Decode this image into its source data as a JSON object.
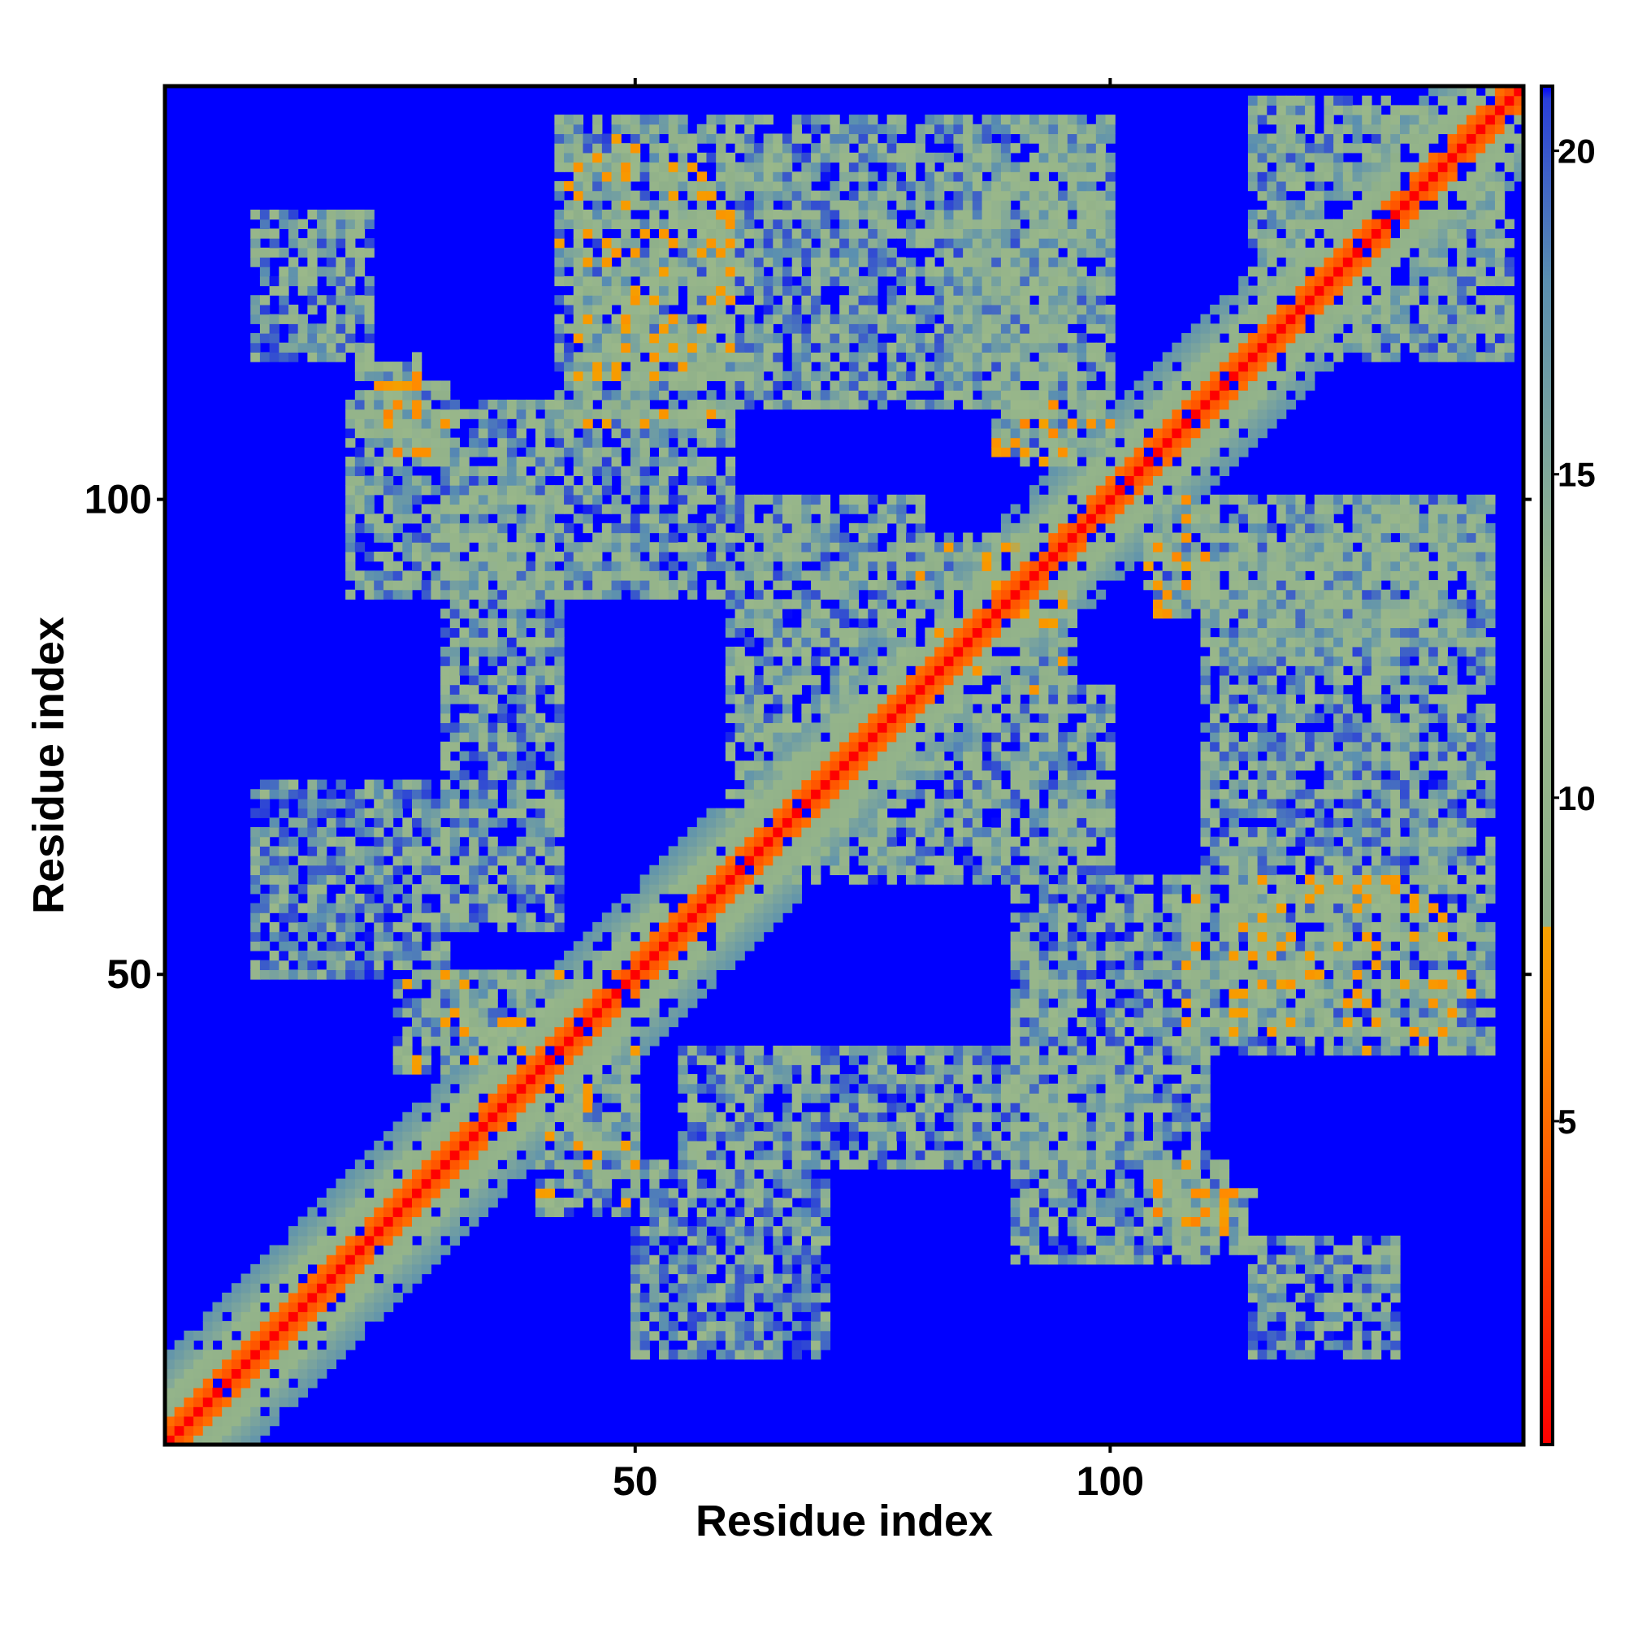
{
  "chart_data": {
    "type": "heatmap",
    "title": "",
    "xlabel": "Residue index",
    "ylabel": "Residue index",
    "x_range": [
      1,
      143
    ],
    "y_range": [
      1,
      143
    ],
    "x_ticks": [
      50,
      100
    ],
    "y_ticks": [
      50,
      100
    ],
    "x_tick_labels": [
      "50",
      "100"
    ],
    "y_tick_labels": [
      "50",
      "100"
    ],
    "colorbar": {
      "ticks": [
        5,
        10,
        15,
        20
      ],
      "tick_labels": [
        "5",
        "10",
        "15",
        "20"
      ],
      "range": [
        0,
        21
      ],
      "stops": [
        {
          "value": 0,
          "color": "#ff0000"
        },
        {
          "value": 6.5,
          "color": "#ff8c00"
        },
        {
          "value": 8.0,
          "color": "#f5a000"
        },
        {
          "value": 8.01,
          "color": "#8fb08a"
        },
        {
          "value": 13,
          "color": "#9ab88a"
        },
        {
          "value": 18,
          "color": "#5a8fb0"
        },
        {
          "value": 20.8,
          "color": "#2a3fd8"
        },
        {
          "value": 21,
          "color": "#0000ff"
        }
      ]
    },
    "diagonal_band": {
      "x_range": [
        1,
        143
      ],
      "distance_on_diagonal": 0
    },
    "contact_features": [
      {
        "x": [
          21,
          27
        ],
        "y": [
          107,
          115
        ],
        "min_distance": 6
      },
      {
        "x": [
          42,
          60
        ],
        "y": [
          108,
          140
        ],
        "min_distance": 7
      },
      {
        "x": [
          88,
          96
        ],
        "y": [
          104,
          110
        ],
        "min_distance": 6
      },
      {
        "x": [
          104,
          110
        ],
        "y": [
          93,
          100
        ],
        "min_distance": 6
      },
      {
        "x": [
          80,
          90
        ],
        "y": [
          78,
          96
        ],
        "min_distance": 7
      },
      {
        "x": [
          104,
          112
        ],
        "y": [
          24,
          30
        ],
        "min_distance": 6
      },
      {
        "x": [
          112,
          135
        ],
        "y": [
          44,
          60
        ],
        "min_distance": 7
      },
      {
        "x": [
          25,
          42
        ],
        "y": [
          40,
          50
        ],
        "min_distance": 7
      },
      {
        "x": [
          10,
          22
        ],
        "y": [
          115,
          130
        ],
        "min_distance": 10
      },
      {
        "x": [
          115,
          140
        ],
        "y": [
          120,
          142
        ],
        "min_distance": 8
      },
      {
        "x": [
          85,
          100
        ],
        "y": [
          110,
          140
        ],
        "min_distance": 10
      },
      {
        "x": [
          30,
          42
        ],
        "y": [
          55,
          100
        ],
        "min_distance": 10
      },
      {
        "x": [
          50,
          70
        ],
        "y": [
          10,
          30
        ],
        "min_distance": 12
      },
      {
        "x": [
          60,
          80
        ],
        "y": [
          60,
          100
        ],
        "min_distance": 9
      },
      {
        "x": [
          110,
          140
        ],
        "y": [
          60,
          100
        ],
        "min_distance": 11
      },
      {
        "x": [
          90,
          110
        ],
        "y": [
          20,
          60
        ],
        "min_distance": 10
      }
    ]
  }
}
